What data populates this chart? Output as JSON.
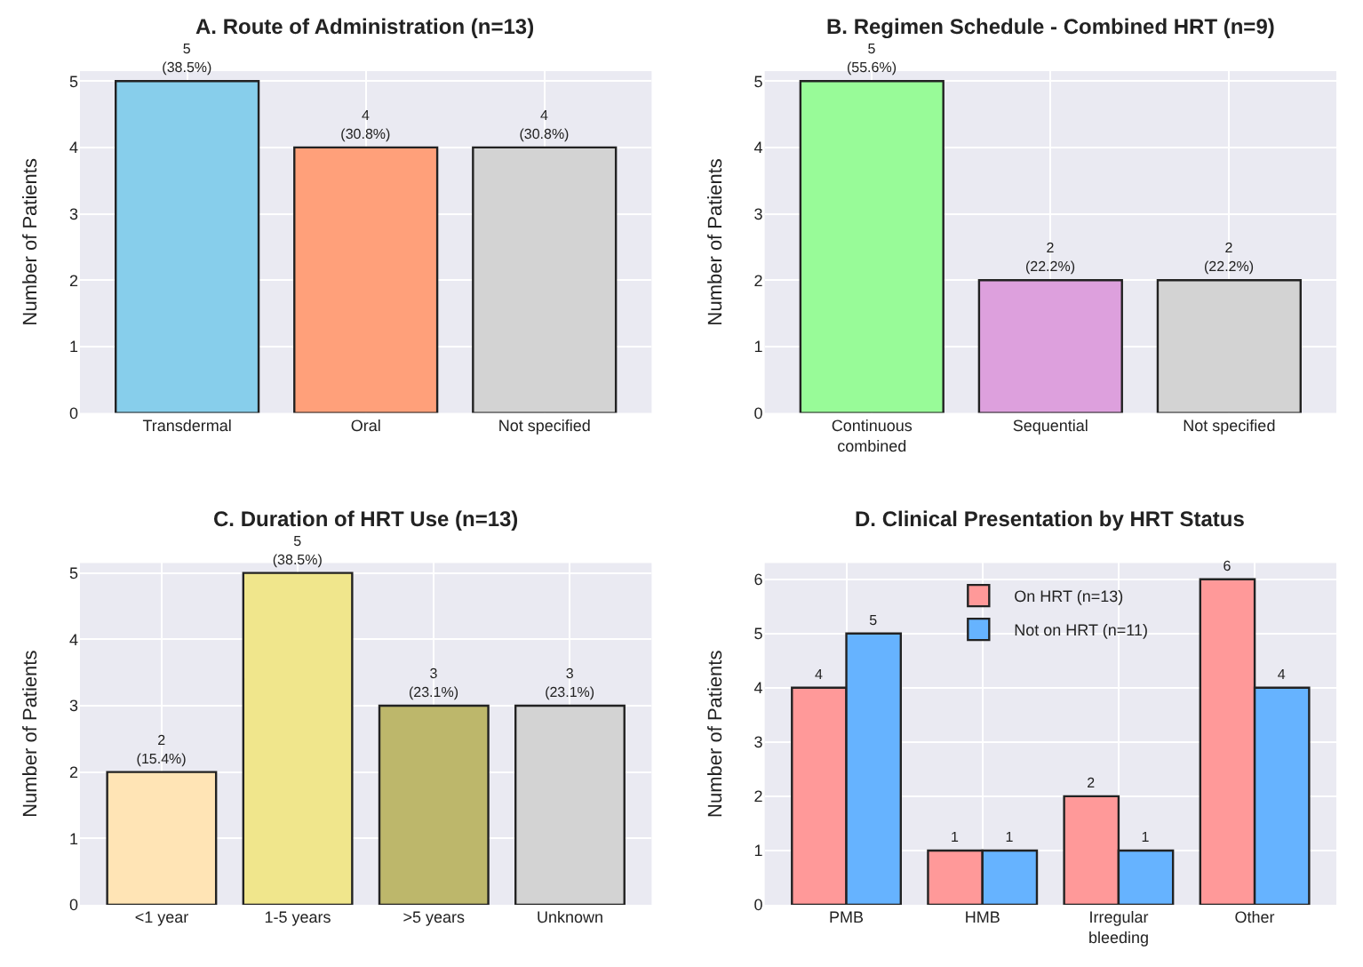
{
  "chart_data": [
    {
      "type": "bar",
      "title": "A. Route of Administration (n=13)",
      "ylabel": "Number of Patients",
      "categories": [
        "Transdermal",
        "Oral",
        "Not specified"
      ],
      "values": [
        5,
        4,
        4
      ],
      "colors": [
        "#87ceeb",
        "#ffa07a",
        "#d3d3d3"
      ],
      "value_labels": [
        "5\n(38.5%)",
        "4\n(30.8%)",
        "4\n(30.8%)"
      ],
      "ylim": [
        0,
        5.15
      ],
      "yticks": [
        0,
        1,
        2,
        3,
        4,
        5
      ],
      "grid": true
    },
    {
      "type": "bar",
      "title": "B. Regimen Schedule - Combined HRT (n=9)",
      "ylabel": "Number of Patients",
      "categories": [
        "Continuous\ncombined",
        "Sequential",
        "Not specified"
      ],
      "values": [
        5,
        2,
        2
      ],
      "colors": [
        "#98fb98",
        "#dda0dd",
        "#d3d3d3"
      ],
      "value_labels": [
        "5\n(55.6%)",
        "2\n(22.2%)",
        "2\n(22.2%)"
      ],
      "ylim": [
        0,
        5.15
      ],
      "yticks": [
        0,
        1,
        2,
        3,
        4,
        5
      ],
      "grid": true
    },
    {
      "type": "bar",
      "title": "C. Duration of HRT Use (n=13)",
      "ylabel": "Number of Patients",
      "categories": [
        "<1 year",
        "1-5 years",
        ">5 years",
        "Unknown"
      ],
      "values": [
        2,
        5,
        3,
        3
      ],
      "colors": [
        "#ffe4b5",
        "#f0e68c",
        "#bdb76b",
        "#d3d3d3"
      ],
      "value_labels": [
        "2\n(15.4%)",
        "5\n(38.5%)",
        "3\n(23.1%)",
        "3\n(23.1%)"
      ],
      "ylim": [
        0,
        5.15
      ],
      "yticks": [
        0,
        1,
        2,
        3,
        4,
        5
      ],
      "grid": true
    },
    {
      "type": "bar",
      "title": "D. Clinical Presentation by HRT Status",
      "ylabel": "Number of Patients",
      "categories": [
        "PMB",
        "HMB",
        "Irregular\nbleeding",
        "Other"
      ],
      "series": [
        {
          "name": "On HRT (n=13)",
          "color": "#ff9999",
          "values": [
            4,
            1,
            2,
            6
          ]
        },
        {
          "name": "Not on HRT (n=11)",
          "color": "#66b3ff",
          "values": [
            5,
            1,
            1,
            4
          ]
        }
      ],
      "data_labels": true,
      "ylim": [
        0,
        6.3
      ],
      "yticks": [
        0,
        1,
        2,
        3,
        4,
        5,
        6
      ],
      "grid": true,
      "legend": "top"
    }
  ]
}
